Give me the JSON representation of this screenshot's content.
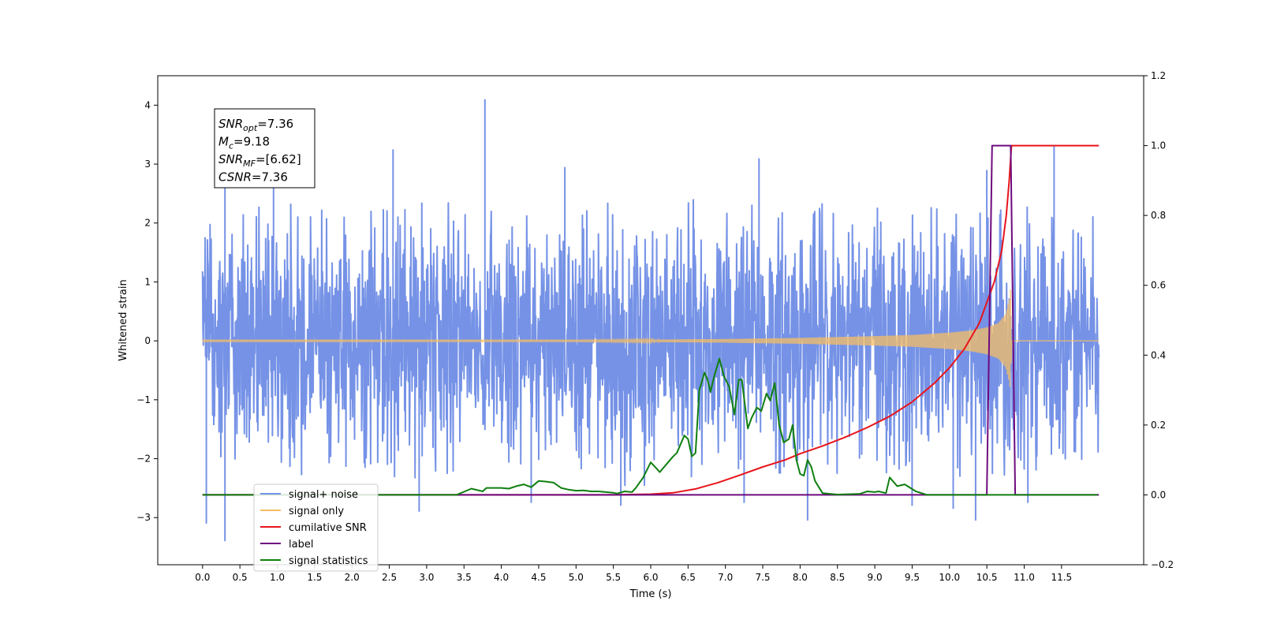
{
  "chart_data": {
    "type": "line",
    "title": "",
    "xlabel": "Time (s)",
    "ylabel": "Whitened strain",
    "y2label": "",
    "xlim": [
      -0.6,
      12.6
    ],
    "ylim": [
      -3.8,
      4.5
    ],
    "y2lim": [
      -0.2,
      1.2
    ],
    "x_ticks": [
      0.0,
      0.5,
      1.0,
      1.5,
      2.0,
      2.5,
      3.0,
      3.5,
      4.0,
      4.5,
      5.0,
      5.5,
      6.0,
      6.5,
      7.0,
      7.5,
      8.0,
      8.5,
      9.0,
      9.5,
      10.0,
      10.5,
      11.0,
      11.5
    ],
    "x_tick_labels": [
      "0.0",
      "0.5",
      "1.0",
      "1.5",
      "2.0",
      "2.5",
      "3.0",
      "3.5",
      "4.0",
      "4.5",
      "5.0",
      "5.5",
      "6.0",
      "6.5",
      "7.0",
      "7.5",
      "8.0",
      "8.5",
      "9.0",
      "9.5",
      "10.0",
      "10.5",
      "11.0",
      "11.5"
    ],
    "y_ticks": [
      -3,
      -2,
      -1,
      0,
      1,
      2,
      3,
      4
    ],
    "y_tick_labels": [
      "−3",
      "−2",
      "−1",
      "0",
      "1",
      "2",
      "3",
      "4"
    ],
    "y2_ticks": [
      -0.2,
      0.0,
      0.2,
      0.4,
      0.6,
      0.8,
      1.0,
      1.2
    ],
    "y2_tick_labels": [
      "−0.2",
      "0.0",
      "0.2",
      "0.4",
      "0.6",
      "0.8",
      "1.0",
      "1.2"
    ],
    "grid": false,
    "legend_position": "lower-left",
    "annotation": {
      "lines": [
        {
          "base": "SNR",
          "sub": "opt",
          "rest": "=7.36"
        },
        {
          "base": "M",
          "sub": "c",
          "rest": "=9.18"
        },
        {
          "base": "SNR",
          "sub": "MF",
          "rest": "=[6.62]"
        },
        {
          "base": "CSNR",
          "sub": "",
          "rest": "=7.36"
        }
      ]
    },
    "series": [
      {
        "name": "signal+ noise",
        "axis": "left",
        "color": "#7592e6",
        "kind": "noise-band",
        "x_range": [
          0.0,
          12.0
        ],
        "band": [
          [
            0.0,
            2.3,
            -2.2
          ],
          [
            1.0,
            2.4,
            -2.3
          ],
          [
            2.0,
            2.3,
            -2.3
          ],
          [
            3.0,
            2.4,
            -2.4
          ],
          [
            4.0,
            2.4,
            -2.4
          ],
          [
            5.0,
            2.4,
            -2.4
          ],
          [
            6.0,
            2.4,
            -2.5
          ],
          [
            7.0,
            2.4,
            -2.3
          ],
          [
            8.0,
            2.4,
            -2.3
          ],
          [
            9.0,
            2.3,
            -2.3
          ],
          [
            10.0,
            2.3,
            -2.3
          ],
          [
            11.0,
            2.3,
            -2.3
          ],
          [
            12.0,
            2.2,
            -2.0
          ]
        ],
        "spikes": [
          [
            3.78,
            4.1
          ],
          [
            0.3,
            2.6
          ],
          [
            2.55,
            3.25
          ],
          [
            4.85,
            2.95
          ],
          [
            0.95,
            2.8
          ],
          [
            11.4,
            3.3
          ],
          [
            7.45,
            3.1
          ],
          [
            10.5,
            2.9
          ],
          [
            0.05,
            -3.1
          ],
          [
            0.3,
            -3.4
          ],
          [
            2.9,
            -2.9
          ],
          [
            4.4,
            -2.75
          ],
          [
            5.6,
            -2.8
          ],
          [
            7.25,
            -2.75
          ],
          [
            8.1,
            -3.05
          ],
          [
            9.5,
            -2.8
          ],
          [
            10.05,
            -2.85
          ],
          [
            10.35,
            -3.05
          ],
          [
            11.05,
            -2.75
          ]
        ]
      },
      {
        "name": "signal only",
        "axis": "left",
        "color": "#f5bd64",
        "kind": "chirp-envelope",
        "envelope": [
          [
            0.0,
            0.01
          ],
          [
            5.0,
            0.01
          ],
          [
            6.0,
            0.02
          ],
          [
            7.0,
            0.03
          ],
          [
            8.0,
            0.05
          ],
          [
            9.0,
            0.08
          ],
          [
            9.5,
            0.1
          ],
          [
            10.0,
            0.14
          ],
          [
            10.3,
            0.18
          ],
          [
            10.5,
            0.23
          ],
          [
            10.65,
            0.3
          ],
          [
            10.75,
            0.45
          ],
          [
            10.8,
            0.7
          ],
          [
            10.82,
            0.9
          ],
          [
            10.83,
            0.0
          ],
          [
            12.0,
            0.0
          ]
        ]
      },
      {
        "name": "cumilative SNR",
        "axis": "right",
        "color": "#e8141c",
        "points": [
          [
            0.0,
            0.0
          ],
          [
            5.5,
            0.0
          ],
          [
            6.0,
            0.002
          ],
          [
            6.3,
            0.006
          ],
          [
            6.6,
            0.017
          ],
          [
            6.9,
            0.035
          ],
          [
            7.2,
            0.057
          ],
          [
            7.5,
            0.08
          ],
          [
            7.8,
            0.1
          ],
          [
            8.0,
            0.118
          ],
          [
            8.3,
            0.14
          ],
          [
            8.6,
            0.165
          ],
          [
            8.9,
            0.193
          ],
          [
            9.2,
            0.225
          ],
          [
            9.5,
            0.266
          ],
          [
            9.8,
            0.32
          ],
          [
            10.0,
            0.364
          ],
          [
            10.2,
            0.418
          ],
          [
            10.4,
            0.492
          ],
          [
            10.6,
            0.61
          ],
          [
            10.7,
            0.7
          ],
          [
            10.76,
            0.8
          ],
          [
            10.8,
            0.9
          ],
          [
            10.83,
            1.0
          ],
          [
            12.0,
            1.0
          ]
        ]
      },
      {
        "name": "label",
        "axis": "right",
        "color": "#6e0a7e",
        "points": [
          [
            0.0,
            0.0
          ],
          [
            10.5,
            0.0
          ],
          [
            10.57,
            1.0
          ],
          [
            10.82,
            1.0
          ],
          [
            10.88,
            0.0
          ],
          [
            12.0,
            0.0
          ]
        ]
      },
      {
        "name": "signal statistics",
        "axis": "right",
        "color": "#107f10",
        "points": [
          [
            0.0,
            0.0
          ],
          [
            3.4,
            0.0
          ],
          [
            3.6,
            0.018
          ],
          [
            3.75,
            0.01
          ],
          [
            3.8,
            0.02
          ],
          [
            3.9,
            0.02
          ],
          [
            4.0,
            0.02
          ],
          [
            4.1,
            0.018
          ],
          [
            4.2,
            0.025
          ],
          [
            4.3,
            0.03
          ],
          [
            4.4,
            0.022
          ],
          [
            4.5,
            0.04
          ],
          [
            4.6,
            0.038
          ],
          [
            4.7,
            0.035
          ],
          [
            4.8,
            0.02
          ],
          [
            4.9,
            0.015
          ],
          [
            5.0,
            0.012
          ],
          [
            5.1,
            0.013
          ],
          [
            5.2,
            0.01
          ],
          [
            5.3,
            0.01
          ],
          [
            5.4,
            0.008
          ],
          [
            5.5,
            0.006
          ],
          [
            5.55,
            0.004
          ],
          [
            5.65,
            0.01
          ],
          [
            5.75,
            0.008
          ],
          [
            5.8,
            0.02
          ],
          [
            5.9,
            0.05
          ],
          [
            6.0,
            0.093
          ],
          [
            6.08,
            0.075
          ],
          [
            6.12,
            0.065
          ],
          [
            6.2,
            0.085
          ],
          [
            6.3,
            0.11
          ],
          [
            6.35,
            0.12
          ],
          [
            6.45,
            0.17
          ],
          [
            6.5,
            0.16
          ],
          [
            6.55,
            0.11
          ],
          [
            6.6,
            0.12
          ],
          [
            6.65,
            0.3
          ],
          [
            6.72,
            0.35
          ],
          [
            6.76,
            0.33
          ],
          [
            6.8,
            0.295
          ],
          [
            6.85,
            0.34
          ],
          [
            6.92,
            0.39
          ],
          [
            6.98,
            0.34
          ],
          [
            7.05,
            0.31
          ],
          [
            7.12,
            0.23
          ],
          [
            7.18,
            0.33
          ],
          [
            7.22,
            0.33
          ],
          [
            7.3,
            0.19
          ],
          [
            7.35,
            0.22
          ],
          [
            7.42,
            0.25
          ],
          [
            7.48,
            0.24
          ],
          [
            7.55,
            0.29
          ],
          [
            7.6,
            0.27
          ],
          [
            7.66,
            0.32
          ],
          [
            7.72,
            0.2
          ],
          [
            7.78,
            0.15
          ],
          [
            7.85,
            0.16
          ],
          [
            7.9,
            0.2
          ],
          [
            7.95,
            0.1
          ],
          [
            8.0,
            0.06
          ],
          [
            8.05,
            0.055
          ],
          [
            8.1,
            0.1
          ],
          [
            8.15,
            0.08
          ],
          [
            8.2,
            0.04
          ],
          [
            8.3,
            0.005
          ],
          [
            8.5,
            0.001
          ],
          [
            8.8,
            0.003
          ],
          [
            8.9,
            0.01
          ],
          [
            9.0,
            0.008
          ],
          [
            9.05,
            0.01
          ],
          [
            9.15,
            0.005
          ],
          [
            9.2,
            0.05
          ],
          [
            9.3,
            0.025
          ],
          [
            9.4,
            0.03
          ],
          [
            9.55,
            0.01
          ],
          [
            9.7,
            0.0
          ],
          [
            11.98,
            0.0
          ]
        ]
      }
    ]
  }
}
